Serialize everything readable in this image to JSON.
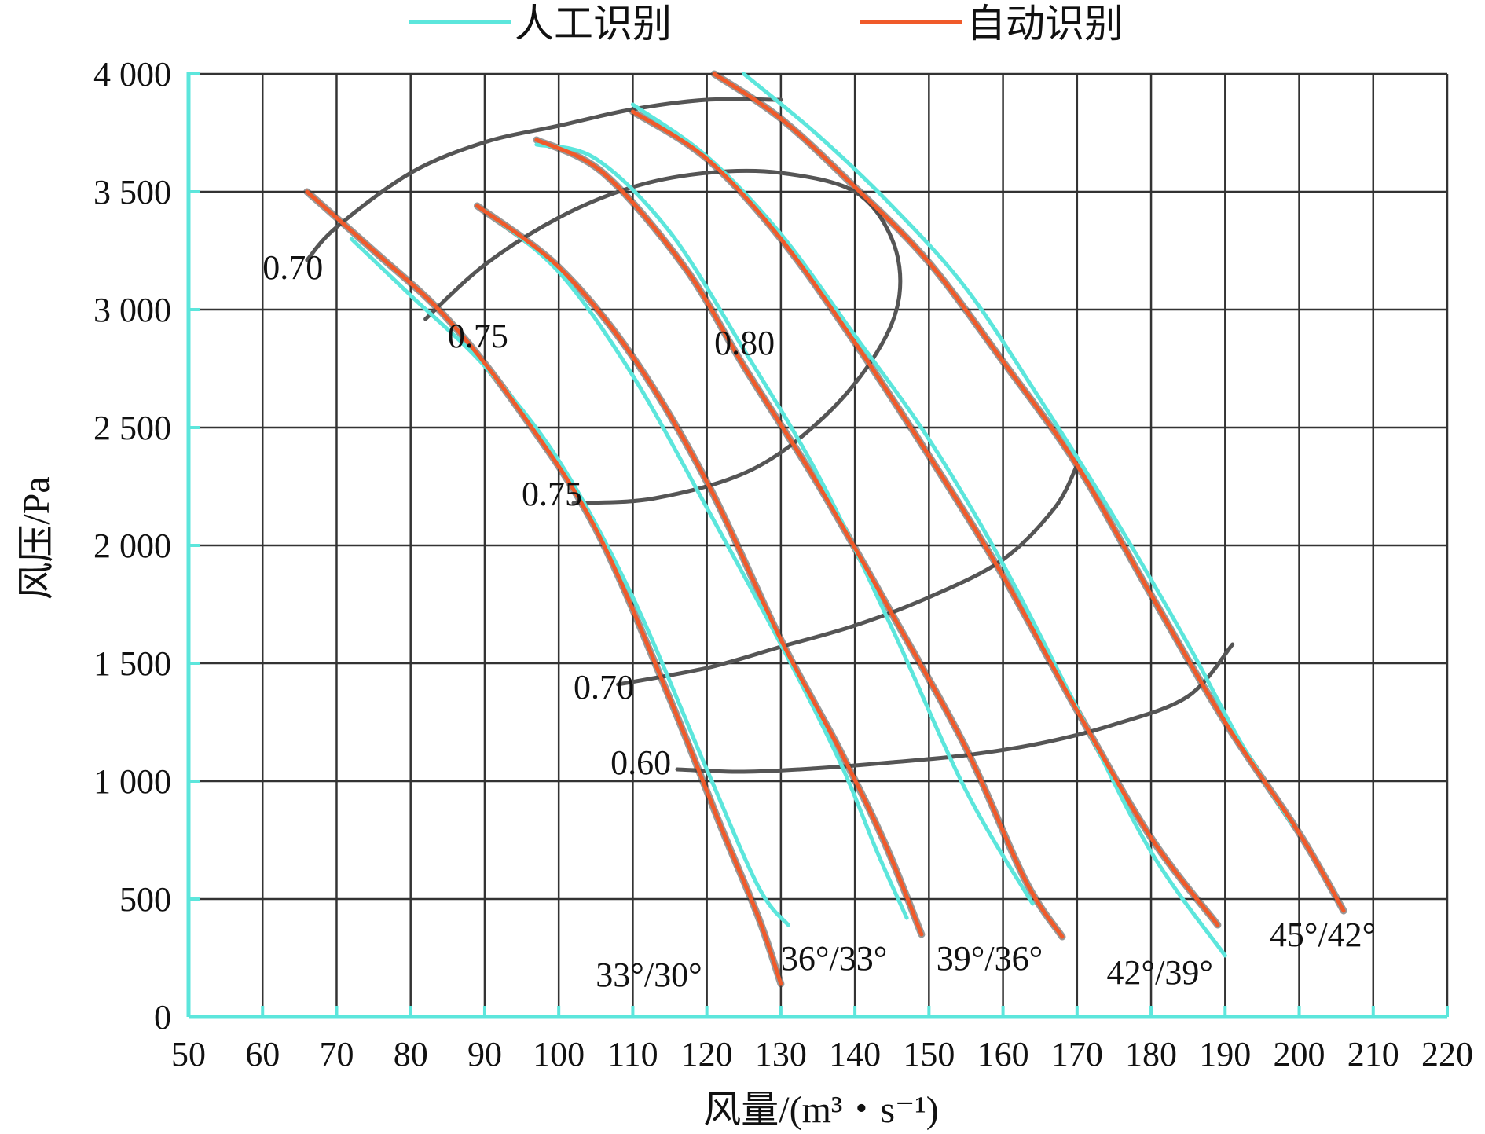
{
  "chart_data": {
    "type": "line",
    "xlabel": "风量/(m³・s⁻¹)",
    "ylabel": "风压/Pa",
    "xlim": [
      50,
      220
    ],
    "ylim": [
      0,
      4000
    ],
    "x_ticks": [
      50,
      60,
      70,
      80,
      90,
      100,
      110,
      120,
      130,
      140,
      150,
      160,
      170,
      180,
      190,
      200,
      210,
      220
    ],
    "y_ticks": [
      0,
      500,
      1000,
      1500,
      2000,
      2500,
      3000,
      3500,
      4000
    ],
    "y_tick_labels": [
      "0",
      "500",
      "1 000",
      "1 500",
      "2 000",
      "2 500",
      "3 000",
      "3 500",
      "4 000"
    ],
    "grid": true,
    "legend_position": "top",
    "colors": {
      "manual": "#5ce6dc",
      "auto": "#f05a2a",
      "axes": "#5ce6dc",
      "grid": "#333333",
      "efficiency": "#555555"
    },
    "series": [
      {
        "name": "人工识别",
        "color": "#5ce6dc"
      },
      {
        "name": "自动识别",
        "color": "#f05a2a"
      }
    ],
    "curves": [
      {
        "angle_label": "33°/30°",
        "manual": [
          [
            72,
            3300
          ],
          [
            80,
            3060
          ],
          [
            90,
            2760
          ],
          [
            100,
            2360
          ],
          [
            110,
            1780
          ],
          [
            120,
            1050
          ],
          [
            127,
            550
          ],
          [
            131,
            390
          ]
        ],
        "auto": [
          [
            66,
            3500
          ],
          [
            75,
            3250
          ],
          [
            85,
            2960
          ],
          [
            95,
            2560
          ],
          [
            105,
            2070
          ],
          [
            115,
            1350
          ],
          [
            122,
            800
          ],
          [
            127,
            420
          ],
          [
            130,
            140
          ]
        ]
      },
      {
        "angle_label": "36°/33°",
        "manual": [
          [
            90,
            3420
          ],
          [
            100,
            3160
          ],
          [
            110,
            2720
          ],
          [
            120,
            2160
          ],
          [
            130,
            1580
          ],
          [
            138,
            1080
          ],
          [
            143,
            700
          ],
          [
            147,
            420
          ]
        ],
        "auto": [
          [
            89,
            3440
          ],
          [
            100,
            3180
          ],
          [
            110,
            2800
          ],
          [
            120,
            2270
          ],
          [
            130,
            1600
          ],
          [
            138,
            1130
          ],
          [
            144,
            740
          ],
          [
            149,
            350
          ]
        ]
      },
      {
        "angle_label": "39°/36°",
        "manual": [
          [
            97,
            3700
          ],
          [
            105,
            3640
          ],
          [
            115,
            3330
          ],
          [
            125,
            2830
          ],
          [
            135,
            2300
          ],
          [
            145,
            1650
          ],
          [
            155,
            960
          ],
          [
            164,
            480
          ]
        ],
        "auto": [
          [
            97,
            3720
          ],
          [
            106,
            3580
          ],
          [
            117,
            3180
          ],
          [
            125,
            2760
          ],
          [
            135,
            2260
          ],
          [
            145,
            1710
          ],
          [
            155,
            1140
          ],
          [
            163,
            580
          ],
          [
            168,
            340
          ]
        ]
      },
      {
        "angle_label": "42°/39°",
        "manual": [
          [
            110,
            3870
          ],
          [
            120,
            3650
          ],
          [
            130,
            3320
          ],
          [
            140,
            2890
          ],
          [
            150,
            2450
          ],
          [
            160,
            1920
          ],
          [
            170,
            1310
          ],
          [
            180,
            700
          ],
          [
            190,
            260
          ]
        ],
        "auto": [
          [
            110,
            3840
          ],
          [
            120,
            3640
          ],
          [
            130,
            3300
          ],
          [
            140,
            2860
          ],
          [
            150,
            2380
          ],
          [
            160,
            1870
          ],
          [
            170,
            1300
          ],
          [
            180,
            760
          ],
          [
            189,
            390
          ]
        ]
      },
      {
        "angle_label": "45°/42°",
        "manual": [
          [
            125,
            4000
          ],
          [
            135,
            3740
          ],
          [
            145,
            3440
          ],
          [
            155,
            3090
          ],
          [
            165,
            2620
          ],
          [
            175,
            2120
          ],
          [
            185,
            1580
          ],
          [
            192,
            1170
          ],
          [
            199,
            820
          ]
        ],
        "auto": [
          [
            121,
            4000
          ],
          [
            130,
            3810
          ],
          [
            140,
            3520
          ],
          [
            150,
            3200
          ],
          [
            160,
            2780
          ],
          [
            170,
            2340
          ],
          [
            180,
            1790
          ],
          [
            190,
            1250
          ],
          [
            200,
            780
          ],
          [
            206,
            450
          ]
        ]
      }
    ],
    "efficiency_contours": [
      {
        "label": "0.70",
        "points": [
          [
            66,
            3210
          ],
          [
            70,
            3350
          ],
          [
            80,
            3580
          ],
          [
            90,
            3710
          ],
          [
            100,
            3780
          ],
          [
            110,
            3850
          ],
          [
            120,
            3890
          ],
          [
            130,
            3890
          ]
        ]
      },
      {
        "label": "0.75",
        "points": [
          [
            82,
            2960
          ],
          [
            90,
            3190
          ],
          [
            100,
            3390
          ],
          [
            110,
            3520
          ],
          [
            120,
            3580
          ],
          [
            130,
            3580
          ],
          [
            140,
            3500
          ],
          [
            145,
            3300
          ],
          [
            146,
            3060
          ],
          [
            143,
            2820
          ],
          [
            136,
            2550
          ],
          [
            126,
            2320
          ],
          [
            113,
            2200
          ],
          [
            102,
            2180
          ]
        ]
      },
      {
        "label": "0.70",
        "points": [
          [
            108,
            1410
          ],
          [
            120,
            1480
          ],
          [
            130,
            1570
          ],
          [
            140,
            1660
          ],
          [
            150,
            1780
          ],
          [
            160,
            1940
          ],
          [
            167,
            2160
          ],
          [
            170,
            2340
          ]
        ]
      },
      {
        "label": "0.60",
        "points": [
          [
            116,
            1050
          ],
          [
            125,
            1040
          ],
          [
            135,
            1055
          ],
          [
            145,
            1080
          ],
          [
            155,
            1110
          ],
          [
            165,
            1160
          ],
          [
            175,
            1240
          ],
          [
            185,
            1360
          ],
          [
            191,
            1580
          ]
        ]
      }
    ],
    "contour_labels": [
      {
        "text": "0.70",
        "x": 60,
        "y": 3130
      },
      {
        "text": "0.75",
        "x": 85,
        "y": 2840
      },
      {
        "text": "0.80",
        "x": 121,
        "y": 2810
      },
      {
        "text": "0.75",
        "x": 95,
        "y": 2170
      },
      {
        "text": "0.70",
        "x": 102,
        "y": 1350
      },
      {
        "text": "0.60",
        "x": 107,
        "y": 1030
      }
    ],
    "angle_labels": [
      {
        "text": "33°/30°",
        "x": 105,
        "y": 130
      },
      {
        "text": "36°/33°",
        "x": 130,
        "y": 200
      },
      {
        "text": "39°/36°",
        "x": 151,
        "y": 200
      },
      {
        "text": "42°/39°",
        "x": 174,
        "y": 140
      },
      {
        "text": "45°/42°",
        "x": 196,
        "y": 300
      }
    ]
  }
}
